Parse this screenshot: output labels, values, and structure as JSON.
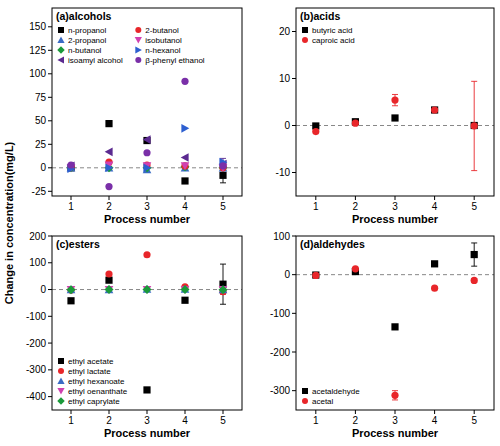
{
  "chart_data": [
    {
      "type": "scatter",
      "title": "(a)alcohols",
      "x_label": "Process number",
      "y_label": "Change in concentration(mg/L)",
      "x": [
        1,
        2,
        3,
        4,
        5
      ],
      "xlim": [
        0.5,
        5.5
      ],
      "xticks": [
        1,
        2,
        3,
        4,
        5
      ],
      "ylim": [
        -30,
        170
      ],
      "yticks": [
        -25,
        0,
        25,
        50,
        75,
        100,
        125,
        150
      ],
      "reference_line": 0,
      "grid": false,
      "legend": "upper left",
      "series": [
        {
          "name": "n-propanol",
          "color": "#000000",
          "marker": "square",
          "values": [
            0,
            47,
            29,
            -14,
            -8
          ],
          "errors": [
            0,
            0,
            0,
            0,
            8
          ]
        },
        {
          "name": "2-propanol",
          "color": "#3a6bc4",
          "marker": "triangle-up",
          "values": [
            0,
            0,
            -2,
            0,
            0
          ]
        },
        {
          "name": "n-butanol",
          "color": "#1a9a3a",
          "marker": "diamond",
          "values": [
            0,
            0,
            0,
            1,
            0
          ]
        },
        {
          "name": "isoamyl alcohol",
          "color": "#5b2a90",
          "marker": "triangle-left",
          "values": [
            2,
            17,
            30,
            11,
            4
          ],
          "errors": [
            0,
            0,
            0,
            0,
            6
          ]
        },
        {
          "name": "2-butanol",
          "color": "#e8262a",
          "marker": "circle",
          "values": [
            1,
            6,
            3,
            2,
            0
          ]
        },
        {
          "name": "isobutanol",
          "color": "#d040b0",
          "marker": "triangle-down",
          "values": [
            0,
            3,
            2,
            2,
            0
          ]
        },
        {
          "name": "n-hexanol",
          "color": "#2d5fd0",
          "marker": "triangle-right",
          "values": [
            -1,
            0,
            0,
            42,
            6
          ]
        },
        {
          "name": "β-phenyl ethanol",
          "color": "#7a2fa8",
          "marker": "circle",
          "values": [
            3,
            -20,
            16,
            92,
            2
          ]
        }
      ]
    },
    {
      "type": "scatter",
      "title": "(b)acids",
      "x_label": "Process number",
      "x": [
        1,
        2,
        3,
        4,
        5
      ],
      "xlim": [
        0.5,
        5.5
      ],
      "xticks": [
        1,
        2,
        3,
        4,
        5
      ],
      "ylim": [
        -15,
        25
      ],
      "yticks": [
        -10,
        0,
        10,
        20
      ],
      "reference_line": 0,
      "grid": false,
      "legend": "upper left",
      "series": [
        {
          "name": "butyric acid",
          "color": "#000000",
          "marker": "square",
          "values": [
            -0.1,
            0.8,
            1.6,
            3.3,
            0
          ]
        },
        {
          "name": "caproic acid",
          "color": "#e8262a",
          "marker": "circle",
          "values": [
            -1.3,
            0.5,
            5.4,
            3.3,
            -0.1
          ],
          "errors": [
            0,
            0,
            1.2,
            0,
            9.5
          ]
        }
      ]
    },
    {
      "type": "scatter",
      "title": "(c)esters",
      "x_label": "Process number",
      "x": [
        1,
        2,
        3,
        4,
        5
      ],
      "xlim": [
        0.5,
        5.5
      ],
      "xticks": [
        1,
        2,
        3,
        4,
        5
      ],
      "ylim": [
        -450,
        200
      ],
      "yticks": [
        -400,
        -300,
        -200,
        -100,
        0,
        100,
        200
      ],
      "reference_line": 0,
      "grid": false,
      "legend": "lower left",
      "series": [
        {
          "name": "ethyl acetate",
          "color": "#000000",
          "marker": "square",
          "values": [
            -42,
            35,
            -375,
            -40,
            20
          ],
          "errors": [
            0,
            0,
            0,
            0,
            75
          ]
        },
        {
          "name": "ethyl lactate",
          "color": "#e8262a",
          "marker": "circle",
          "values": [
            -2,
            58,
            130,
            10,
            -8
          ],
          "errors": [
            0,
            0,
            0,
            0,
            10
          ]
        },
        {
          "name": "ethyl hexanoate",
          "color": "#3a6bc4",
          "marker": "triangle-up",
          "values": [
            0,
            0,
            1,
            1,
            0
          ]
        },
        {
          "name": "ethyl oenanthate",
          "color": "#d040b0",
          "marker": "triangle-down",
          "values": [
            0,
            0,
            0,
            0,
            0
          ]
        },
        {
          "name": "ethyl caprylate",
          "color": "#1a9a3a",
          "marker": "diamond",
          "values": [
            -1,
            0,
            0,
            0,
            -1
          ]
        }
      ]
    },
    {
      "type": "scatter",
      "title": "(d)aldehydes",
      "x_label": "Process number",
      "x": [
        1,
        2,
        3,
        4,
        5
      ],
      "xlim": [
        0.5,
        5.5
      ],
      "xticks": [
        1,
        2,
        3,
        4,
        5
      ],
      "ylim": [
        -350,
        100
      ],
      "yticks": [
        -300,
        -200,
        -100,
        0,
        100
      ],
      "reference_line": 0,
      "grid": false,
      "legend": "lower left",
      "series": [
        {
          "name": "acetaldehyde",
          "color": "#000000",
          "marker": "square",
          "values": [
            -1,
            8,
            -135,
            28,
            52
          ],
          "errors": [
            0,
            0,
            0,
            0,
            30
          ]
        },
        {
          "name": "acetal",
          "color": "#e8262a",
          "marker": "circle",
          "values": [
            -2,
            15,
            -312,
            -35,
            -15
          ],
          "errors": [
            0,
            0,
            12,
            0,
            5
          ]
        }
      ]
    }
  ]
}
